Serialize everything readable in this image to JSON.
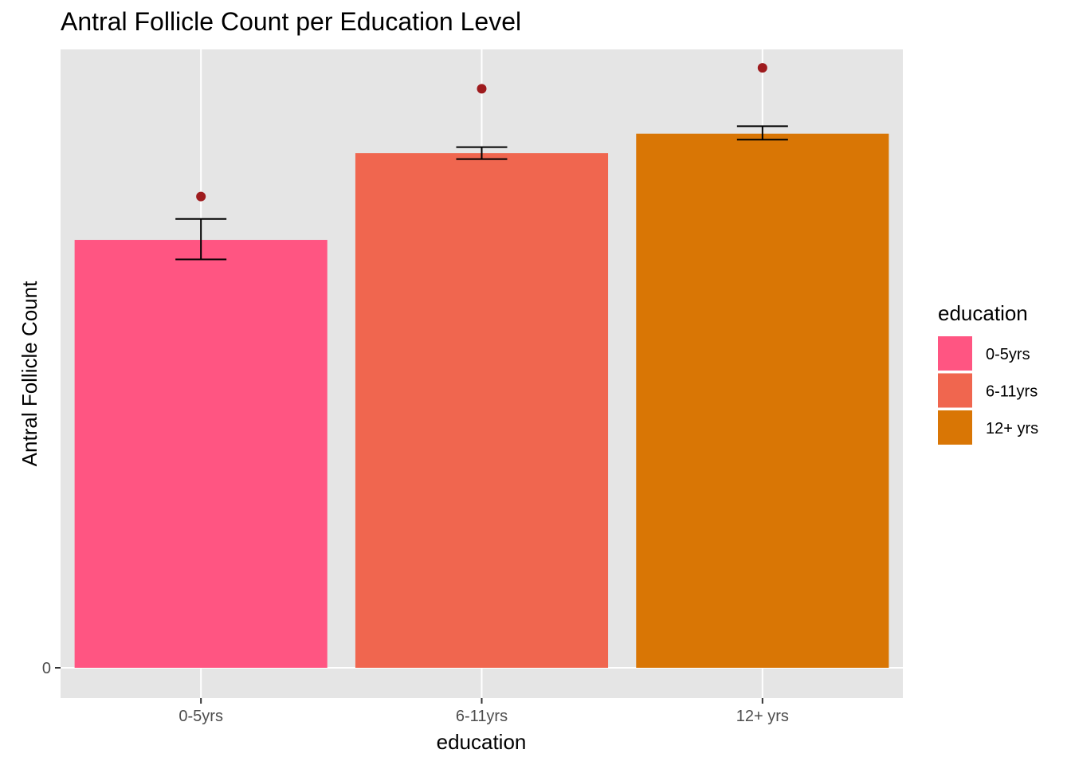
{
  "chart_data": {
    "type": "bar",
    "title": "Antral Follicle Count per Education Level",
    "xlabel": "education",
    "ylabel": "Antral Follicle Count",
    "categories": [
      "0-5yrs",
      "6-11yrs",
      "12+ yrs"
    ],
    "values": [
      14.3,
      17.2,
      17.85
    ],
    "error_low": [
      13.65,
      17.0,
      17.65
    ],
    "error_high": [
      15.0,
      17.4,
      18.1
    ],
    "points": [
      15.75,
      19.35,
      20.05
    ],
    "ylim": [
      -1,
      20.8
    ],
    "y_ticks": [
      0
    ],
    "y_tick_labels": [
      "0"
    ],
    "bar_colors": [
      "#FF5582",
      "#F0664F",
      "#D97605"
    ],
    "point_color": "#9E1B1E",
    "panel_background": "#E5E5E5",
    "grid_color": "#FFFFFF",
    "legend": {
      "title": "education",
      "placement": "right",
      "entries": [
        {
          "label": "0-5yrs",
          "color": "#FF5582"
        },
        {
          "label": "6-11yrs",
          "color": "#F0664F"
        },
        {
          "label": "12+ yrs",
          "color": "#D97605"
        }
      ]
    }
  }
}
